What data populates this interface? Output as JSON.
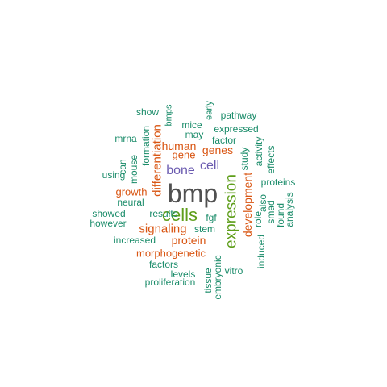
{
  "colors": {
    "top": "#505050",
    "second": "#5E9E1A",
    "third": "#6B5BB0",
    "fourth": "#D95512",
    "base": "#1B8C6A"
  },
  "words": [
    {
      "text": "bmp",
      "color": "top",
      "rotated": false
    },
    {
      "text": "cells",
      "color": "second",
      "rotated": false
    },
    {
      "text": "expression",
      "color": "second",
      "rotated": true
    },
    {
      "text": "bone",
      "color": "third",
      "rotated": false
    },
    {
      "text": "cell",
      "color": "third",
      "rotated": false
    },
    {
      "text": "differentiation",
      "color": "fourth",
      "rotated": true
    },
    {
      "text": "development",
      "color": "fourth",
      "rotated": true
    },
    {
      "text": "signaling",
      "color": "fourth",
      "rotated": false
    },
    {
      "text": "protein",
      "color": "fourth",
      "rotated": false
    },
    {
      "text": "growth",
      "color": "fourth",
      "rotated": false
    },
    {
      "text": "human",
      "color": "fourth",
      "rotated": false
    },
    {
      "text": "genes",
      "color": "fourth",
      "rotated": false
    },
    {
      "text": "gene",
      "color": "fourth",
      "rotated": false
    },
    {
      "text": "morphogenetic",
      "color": "fourth",
      "rotated": false
    },
    {
      "text": "show",
      "color": "base",
      "rotated": false
    },
    {
      "text": "bmps",
      "color": "base",
      "rotated": true
    },
    {
      "text": "early",
      "color": "base",
      "rotated": true
    },
    {
      "text": "pathway",
      "color": "base",
      "rotated": false
    },
    {
      "text": "mice",
      "color": "base",
      "rotated": false
    },
    {
      "text": "may",
      "color": "base",
      "rotated": false
    },
    {
      "text": "expressed",
      "color": "base",
      "rotated": false
    },
    {
      "text": "mrna",
      "color": "base",
      "rotated": false
    },
    {
      "text": "factor",
      "color": "base",
      "rotated": false
    },
    {
      "text": "can",
      "color": "base",
      "rotated": true
    },
    {
      "text": "mouse",
      "color": "base",
      "rotated": true
    },
    {
      "text": "formation",
      "color": "base",
      "rotated": true
    },
    {
      "text": "study",
      "color": "base",
      "rotated": true
    },
    {
      "text": "activity",
      "color": "base",
      "rotated": true
    },
    {
      "text": "effects",
      "color": "base",
      "rotated": true
    },
    {
      "text": "using",
      "color": "base",
      "rotated": false
    },
    {
      "text": "proteins",
      "color": "base",
      "rotated": false
    },
    {
      "text": "also",
      "color": "base",
      "rotated": true
    },
    {
      "text": "neural",
      "color": "base",
      "rotated": false
    },
    {
      "text": "showed",
      "color": "base",
      "rotated": false
    },
    {
      "text": "results",
      "color": "base",
      "rotated": false
    },
    {
      "text": "however",
      "color": "base",
      "rotated": false
    },
    {
      "text": "fgf",
      "color": "base",
      "rotated": false
    },
    {
      "text": "role",
      "color": "base",
      "rotated": true
    },
    {
      "text": "smad",
      "color": "base",
      "rotated": true
    },
    {
      "text": "found",
      "color": "base",
      "rotated": true
    },
    {
      "text": "analysis",
      "color": "base",
      "rotated": true
    },
    {
      "text": "stem",
      "color": "base",
      "rotated": false
    },
    {
      "text": "increased",
      "color": "base",
      "rotated": false
    },
    {
      "text": "induced",
      "color": "base",
      "rotated": true
    },
    {
      "text": "factors",
      "color": "base",
      "rotated": false
    },
    {
      "text": "tissue",
      "color": "base",
      "rotated": true
    },
    {
      "text": "levels",
      "color": "base",
      "rotated": false
    },
    {
      "text": "embryonic",
      "color": "base",
      "rotated": true
    },
    {
      "text": "vitro",
      "color": "base",
      "rotated": false
    },
    {
      "text": "proliferation",
      "color": "base",
      "rotated": false
    }
  ]
}
